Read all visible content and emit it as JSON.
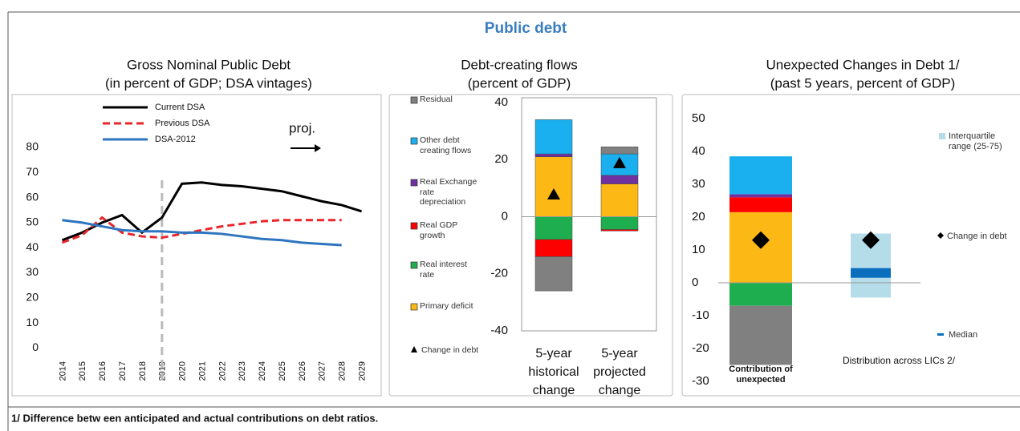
{
  "header": {
    "title": "Public debt"
  },
  "footnote": "1/ Difference betw een anticipated and actual contributions on debt ratios.",
  "chart_data": [
    {
      "type": "line",
      "title": [
        "Gross Nominal Public Debt",
        "(in percent of GDP; DSA vintages)"
      ],
      "x": [
        2014,
        2015,
        2016,
        2017,
        2018,
        2019,
        2020,
        2021,
        2022,
        2023,
        2024,
        2025,
        2026,
        2027,
        2028,
        2029
      ],
      "xlim": [
        2013.7,
        2029.5
      ],
      "xticks": [
        2014,
        2015,
        2016,
        2017,
        2018,
        2019,
        2020,
        2021,
        2022,
        2023,
        2024,
        2025,
        2026,
        2027,
        2028,
        2029
      ],
      "ylim": [
        -5,
        95
      ],
      "yticks": [
        0,
        10,
        20,
        30,
        40,
        50,
        60,
        70,
        80
      ],
      "series": [
        {
          "name": "Current DSA",
          "color": "#000000",
          "dash": false,
          "values": [
            43,
            46,
            50,
            53,
            46,
            52,
            65.5,
            66,
            65,
            64.5,
            63.5,
            62.5,
            60.5,
            58.5,
            57,
            54.5
          ]
        },
        {
          "name": "Previous DSA",
          "color": "#e8262b",
          "dash": true,
          "values": [
            42,
            45,
            52,
            46,
            44.5,
            44,
            45.5,
            47,
            48.5,
            49.5,
            50.5,
            51,
            51,
            51,
            51,
            null
          ]
        },
        {
          "name": "DSA-2012",
          "color": "#2e75c0",
          "dash": false,
          "values": [
            51,
            50,
            48.5,
            47,
            46.5,
            46.5,
            46,
            46,
            45.5,
            44.5,
            43.5,
            43,
            42,
            41.5,
            41,
            null
          ]
        }
      ],
      "projection_line": 2019,
      "annotation": "proj."
    },
    {
      "type": "stacked_bar",
      "title": [
        "Debt-creating flows",
        "(percent of GDP)"
      ],
      "categories": [
        "5-year historical change",
        "5-year projected change"
      ],
      "ylim": [
        -40,
        40
      ],
      "yticks": [
        -40,
        -20,
        0,
        20,
        40
      ],
      "series": [
        {
          "name": "Residual",
          "color": "#808080",
          "values": [
            -12,
            2.5
          ]
        },
        {
          "name": "Other debt creating flows",
          "color": "#1ab0f0",
          "values": [
            12,
            7.5
          ]
        },
        {
          "name": "Real Exchange rate depreciation",
          "color": "#7030a0",
          "values": [
            1,
            3
          ]
        },
        {
          "name": "Real GDP growth",
          "color": "#ff0000",
          "values": [
            -6,
            -0.5
          ]
        },
        {
          "name": "Real interest rate",
          "color": "#1fae4f",
          "values": [
            -8,
            -4.5
          ]
        },
        {
          "name": "Primary deficit",
          "color": "#fcb814",
          "values": [
            21,
            11.5
          ]
        }
      ],
      "markers": {
        "name": "Change in debt",
        "color": "#000000",
        "values": [
          8,
          19
        ]
      }
    },
    {
      "type": "distribution",
      "title": [
        "Unexpected Changes in Debt 1/",
        "(past 5 years, percent of GDP)"
      ],
      "categories": [
        "Contribution of unexpected",
        "Distribution across LICs 2/"
      ],
      "ylim": [
        -30,
        50
      ],
      "yticks": [
        -30,
        -20,
        -10,
        0,
        10,
        20,
        30,
        40,
        50
      ],
      "stack": [
        {
          "color": "#fcb814",
          "value": 21.5
        },
        {
          "color": "#ff0000",
          "value": 4.5
        },
        {
          "color": "#7030a0",
          "value": 1
        },
        {
          "color": "#1ab0f0",
          "value": 11.5
        },
        {
          "color": "#1fae4f",
          "value": -7
        },
        {
          "color": "#808080",
          "value": -18
        }
      ],
      "range": {
        "name": "Interquartile range (25-75)",
        "color": "#b4dce9",
        "low": -4.5,
        "high": 15
      },
      "median": {
        "name": "Median",
        "color": "#0a6ebd",
        "value": 3
      },
      "markers": {
        "name": "Change in debt",
        "color": "#000000",
        "values": [
          13,
          13
        ]
      }
    }
  ]
}
